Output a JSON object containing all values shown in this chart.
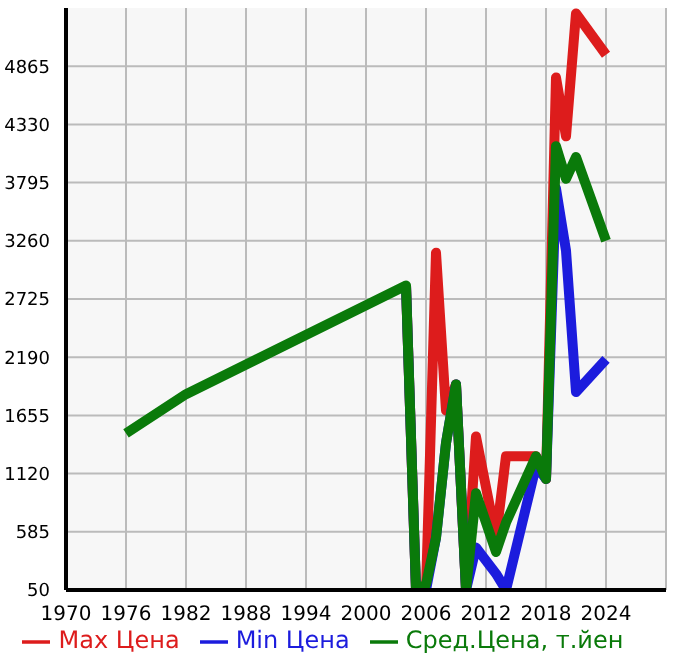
{
  "chart_data": {
    "type": "line",
    "x": [
      1976,
      1982,
      2004,
      2005,
      2006,
      2007,
      2008,
      2009,
      2010,
      2011,
      2013,
      2014,
      2017,
      2018,
      2019,
      2020,
      2021,
      2024
    ],
    "series": [
      {
        "name": "Max Цена",
        "color": "#dd1c1c",
        "values": [
          null,
          null,
          2850,
          50,
          50,
          3150,
          1700,
          1940,
          50,
          1460,
          530,
          1280,
          1280,
          1070,
          4760,
          4220,
          5350,
          4970
        ]
      },
      {
        "name": "Min Цена",
        "color": "#1c1cdd",
        "values": [
          null,
          null,
          2850,
          50,
          50,
          530,
          1400,
          1940,
          50,
          440,
          200,
          50,
          1190,
          1070,
          3740,
          3170,
          1870,
          2170
        ]
      },
      {
        "name": "Сред.Цена, т.йен",
        "color": "#0a7a0a",
        "values": [
          1490,
          1850,
          2850,
          50,
          100,
          530,
          1400,
          1940,
          50,
          940,
          400,
          670,
          1280,
          1070,
          4130,
          3830,
          4030,
          3260
        ]
      }
    ],
    "xlim": [
      1970,
      2030
    ],
    "xticks": [
      1970,
      1976,
      1982,
      1988,
      1994,
      2000,
      2006,
      2012,
      2018,
      2024
    ],
    "ylim": [
      50,
      5400
    ],
    "yticks": [
      50,
      585,
      1120,
      1655,
      2190,
      2725,
      3260,
      3795,
      4330,
      4865
    ],
    "grid": true,
    "legend": "bottom",
    "marker": "none",
    "line_style": "solid"
  }
}
